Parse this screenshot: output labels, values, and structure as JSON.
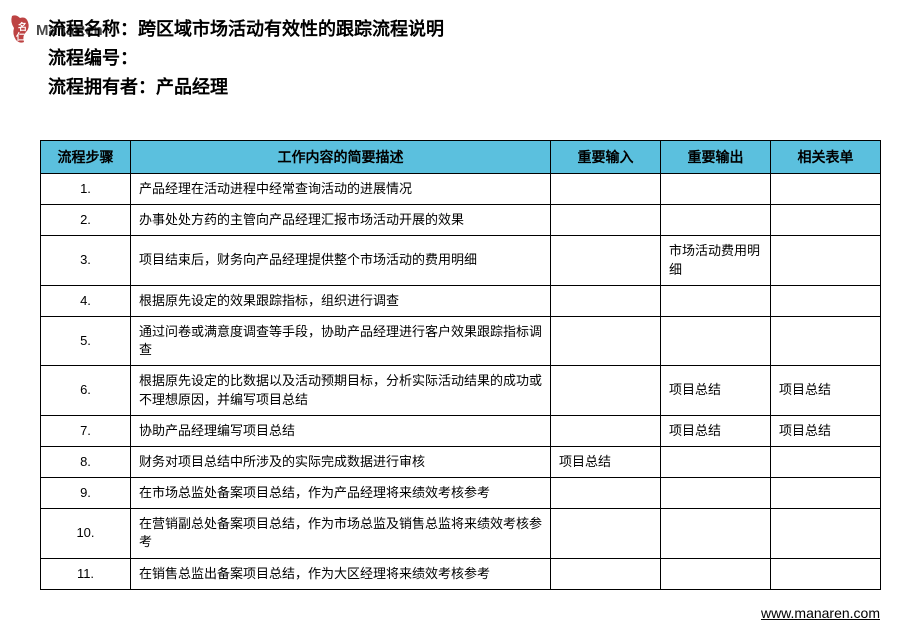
{
  "logo": {
    "text": "ManaRen",
    "seal_color": "#b22222"
  },
  "header": {
    "name_label": "流程名称：",
    "name_value": "跨区域市场活动有效性的跟踪流程说明",
    "id_label": "流程编号：",
    "id_value": "",
    "owner_label": "流程拥有者：",
    "owner_value": "产品经理"
  },
  "table": {
    "header_bg": "#5bc0de",
    "columns": {
      "step": "流程步骤",
      "desc": "工作内容的简要描述",
      "input": "重要输入",
      "output": "重要输出",
      "form": "相关表单"
    },
    "rows": [
      {
        "step": "1.",
        "desc": "产品经理在活动进程中经常查询活动的进展情况",
        "input": "",
        "output": "",
        "form": ""
      },
      {
        "step": "2.",
        "desc": "办事处处方药的主管向产品经理汇报市场活动开展的效果",
        "input": "",
        "output": "",
        "form": ""
      },
      {
        "step": "3.",
        "desc": "项目结束后，财务向产品经理提供整个市场活动的费用明细",
        "input": "",
        "output": "市场活动费用明细",
        "form": ""
      },
      {
        "step": "4.",
        "desc": "根据原先设定的效果跟踪指标，组织进行调查",
        "input": "",
        "output": "",
        "form": ""
      },
      {
        "step": "5.",
        "desc": "通过问卷或满意度调查等手段，协助产品经理进行客户效果跟踪指标调查",
        "input": "",
        "output": "",
        "form": ""
      },
      {
        "step": "6.",
        "desc": "根据原先设定的比数据以及活动预期目标，分析实际活动结果的成功或不理想原因，并编写项目总结",
        "input": "",
        "output": "项目总结",
        "form": "项目总结"
      },
      {
        "step": "7.",
        "desc": "协助产品经理编写项目总结",
        "input": "",
        "output": "项目总结",
        "form": "项目总结"
      },
      {
        "step": "8.",
        "desc": "财务对项目总结中所涉及的实际完成数据进行审核",
        "input": "项目总结",
        "output": "",
        "form": ""
      },
      {
        "step": "9.",
        "desc": "在市场总监处备案项目总结，作为产品经理将来绩效考核参考",
        "input": "",
        "output": "",
        "form": ""
      },
      {
        "step": "10.",
        "desc": "在营销副总处备案项目总结，作为市场总监及销售总监将来绩效考核参考",
        "input": "",
        "output": "",
        "form": ""
      },
      {
        "step": "11.",
        "desc": "在销售总监出备案项目总结，作为大区经理将来绩效考核参考",
        "input": "",
        "output": "",
        "form": ""
      }
    ]
  },
  "footer": {
    "url": "www.manaren.com"
  }
}
